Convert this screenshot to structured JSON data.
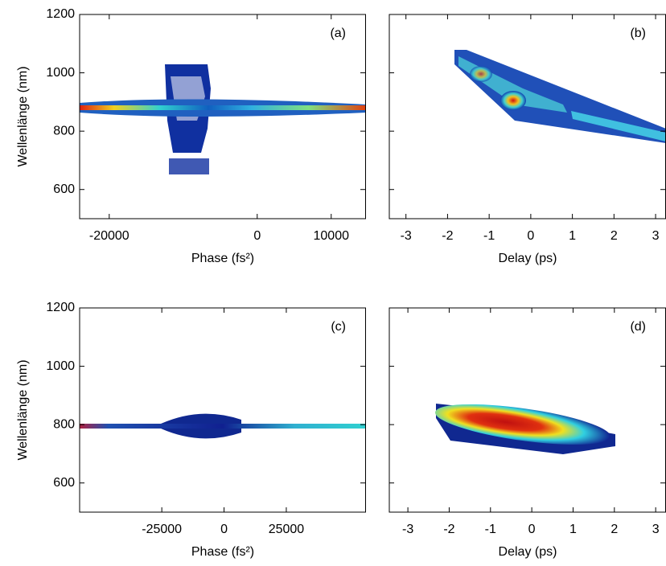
{
  "chart_data": [
    {
      "type": "heatmap",
      "annotation": "(a)",
      "xlabel": "Phase (fs²)",
      "ylabel": "Wellenlänge (nm)",
      "xlim": [
        -24000,
        14700
      ],
      "xticks": [
        -20000,
        0,
        10000
      ],
      "ylim": [
        500,
        1200
      ],
      "yticks": [
        600,
        800,
        1000,
        1200
      ],
      "ytick_labels": true
    },
    {
      "type": "heatmap",
      "annotation": "(b)",
      "xlabel": "Delay (ps)",
      "xlim": [
        -3.4,
        3.25
      ],
      "xticks": [
        -3,
        -2,
        -1,
        0,
        1,
        2,
        3
      ],
      "ylim": [
        500,
        1200
      ],
      "yticks": [
        600,
        800,
        1000,
        1200
      ],
      "ytick_labels": false
    },
    {
      "type": "heatmap",
      "annotation": "(c)",
      "xlabel": "Phase (fs²)",
      "ylabel": "Wellenlänge (nm)",
      "xlim": [
        -58000,
        57000
      ],
      "xticks": [
        -25000,
        0,
        25000
      ],
      "ylim": [
        500,
        1200
      ],
      "yticks": [
        600,
        800,
        1000,
        1200
      ],
      "ytick_labels": true
    },
    {
      "type": "heatmap",
      "annotation": "(d)",
      "xlabel": "Delay (ps)",
      "xlim": [
        -3.45,
        3.25
      ],
      "xticks": [
        -3,
        -2,
        -1,
        0,
        1,
        2,
        3
      ],
      "ylim": [
        500,
        1200
      ],
      "yticks": [
        600,
        800,
        1000,
        1200
      ],
      "ytick_labels": false
    }
  ]
}
